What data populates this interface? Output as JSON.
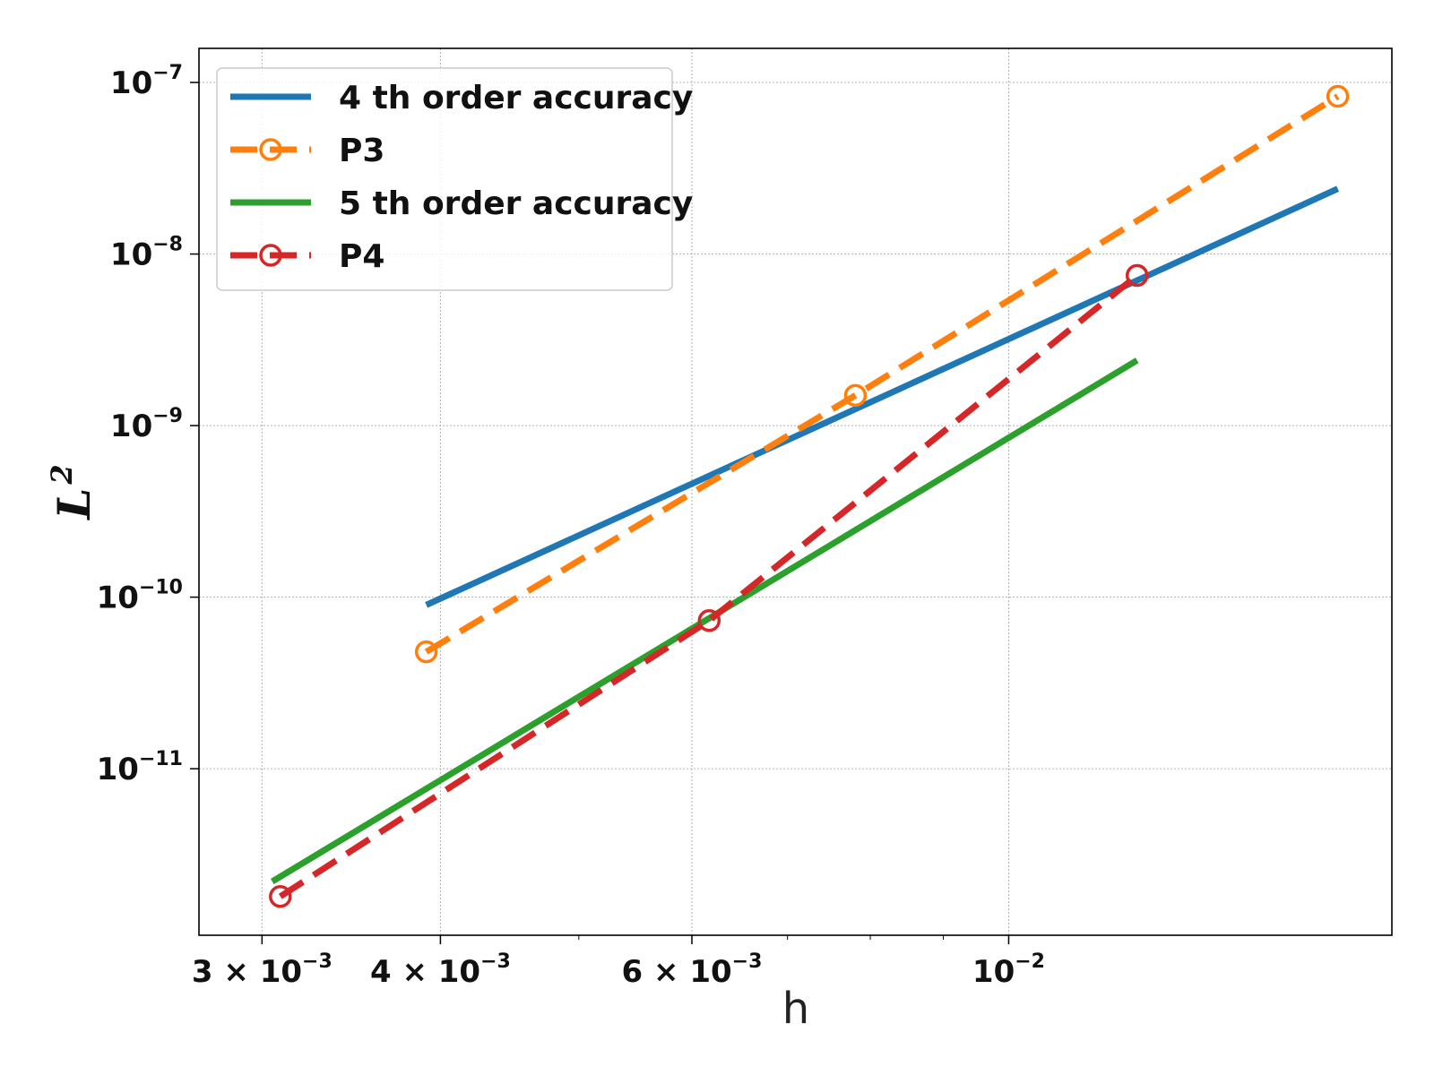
{
  "chart_data": {
    "type": "line",
    "xscale": "log",
    "yscale": "log",
    "xlabel": "h",
    "ylabel": "L",
    "ylabel_sup": "2",
    "xlim": [
      0.00271,
      0.01855
    ],
    "ylim": [
      1.07e-12,
      1.58e-07
    ],
    "grid": true,
    "legend_position": "upper-left",
    "x_ticks": [
      {
        "value": 0.003,
        "mantissa": "3 × 10",
        "exp": "−3"
      },
      {
        "value": 0.004,
        "mantissa": "4 × 10",
        "exp": "−3"
      },
      {
        "value": 0.006,
        "mantissa": "6 × 10",
        "exp": "−3"
      },
      {
        "value": 0.01,
        "mantissa": "10",
        "exp": "−2"
      }
    ],
    "x_minor_ticks": [
      0.005,
      0.007,
      0.008,
      0.009
    ],
    "y_ticks": [
      {
        "value": 1e-07,
        "mantissa": "10",
        "exp": "−7"
      },
      {
        "value": 1e-08,
        "mantissa": "10",
        "exp": "−8"
      },
      {
        "value": 1e-09,
        "mantissa": "10",
        "exp": "−9"
      },
      {
        "value": 1e-10,
        "mantissa": "10",
        "exp": "−10"
      },
      {
        "value": 1e-11,
        "mantissa": "10",
        "exp": "−11"
      }
    ],
    "series": [
      {
        "name": "4 th order accuracy",
        "color": "#1f77b4",
        "style": "solid",
        "marker": "none",
        "x": [
          0.00391,
          0.017
        ],
        "y": [
          9e-11,
          2.4e-08
        ]
      },
      {
        "name": "P3",
        "color": "#ff7f0e",
        "style": "dashed",
        "marker": "circle",
        "x": [
          0.00391,
          0.00781,
          0.017
        ],
        "y": [
          4.8e-11,
          1.5e-09,
          8.3e-08
        ]
      },
      {
        "name": "5 th order accuracy",
        "color": "#2ca02c",
        "style": "solid",
        "marker": "none",
        "x": [
          0.00305,
          0.0123
        ],
        "y": [
          2.2e-12,
          2.4e-09
        ]
      },
      {
        "name": "P4",
        "color": "#d62728",
        "style": "dashed",
        "marker": "circle",
        "x": [
          0.00309,
          0.00617,
          0.0123
        ],
        "y": [
          1.8e-12,
          7.3e-11,
          7.5e-09
        ]
      }
    ]
  }
}
